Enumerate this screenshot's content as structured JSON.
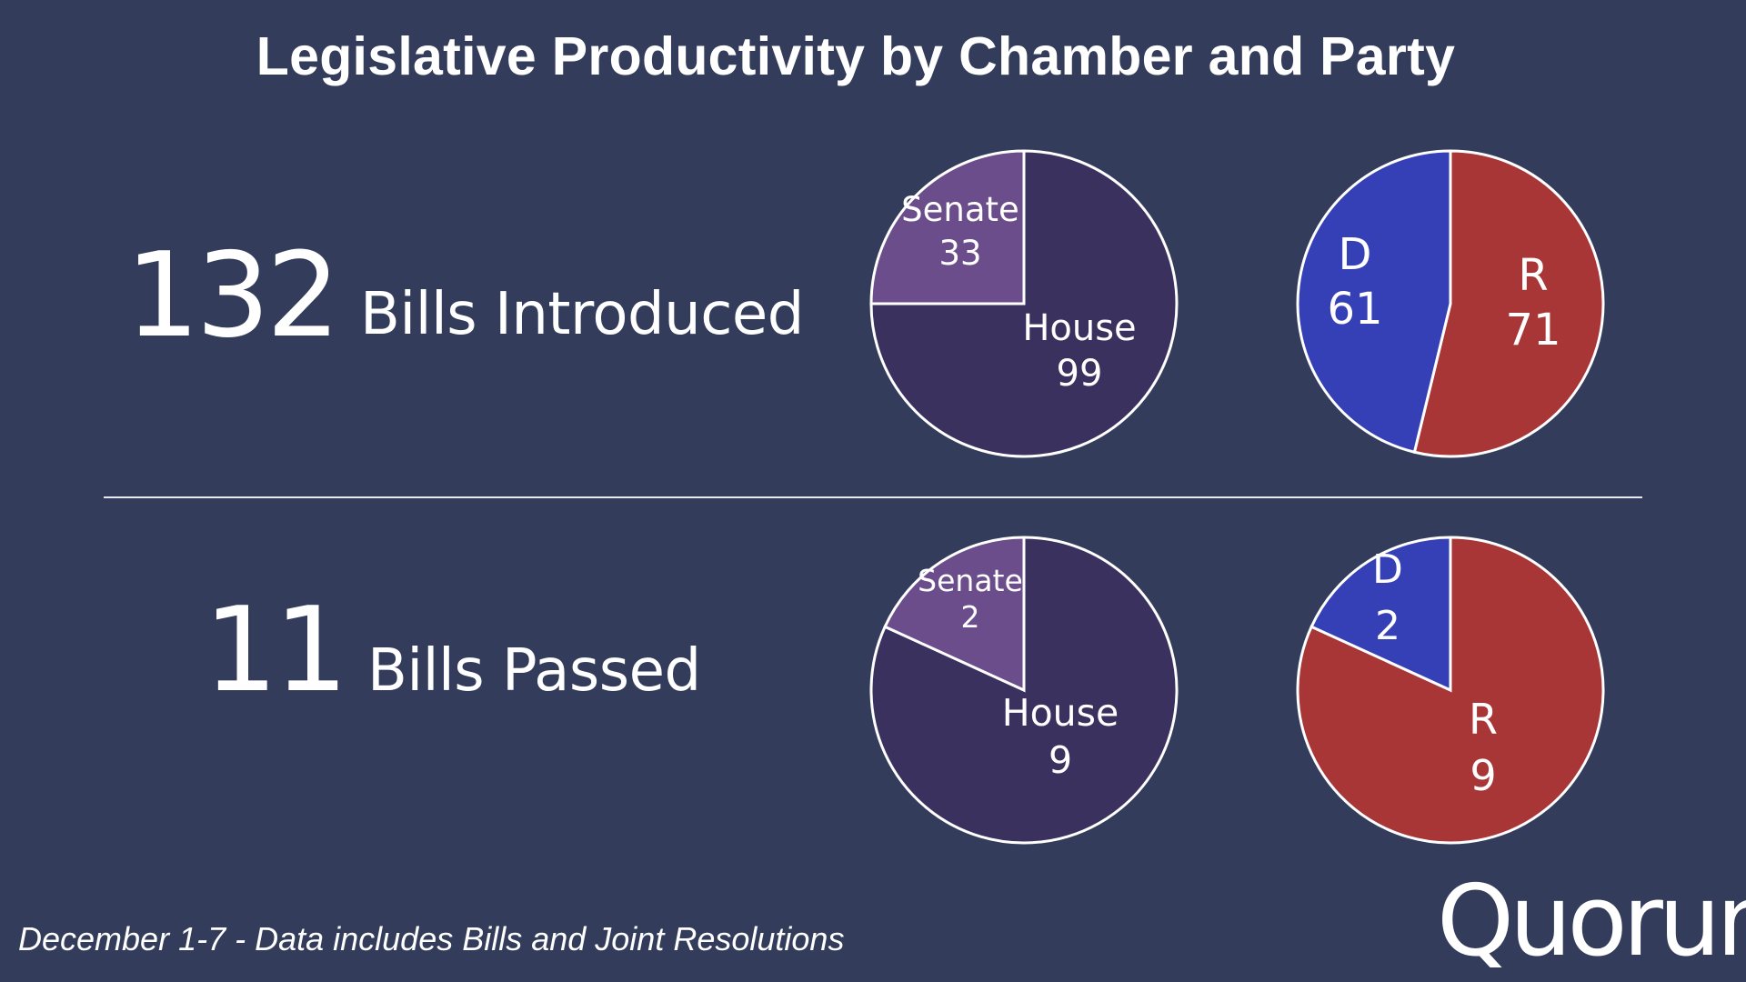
{
  "title": "Legislative Productivity by Chamber and Party",
  "rows": [
    {
      "count": "132",
      "label": "Bills Introduced"
    },
    {
      "count": "11",
      "label": "Bills Passed"
    }
  ],
  "footnote": "December 1-7 - Data includes Bills and Joint Resolutions",
  "logo_text": "Quorum",
  "chart_data": [
    {
      "type": "pie",
      "slices": [
        {
          "label": "Senate",
          "value": 33,
          "color": "#6a4d8a"
        },
        {
          "label": "House",
          "value": 99,
          "color": "#3b315f"
        }
      ]
    },
    {
      "type": "pie",
      "slices": [
        {
          "label": "D",
          "value": 61,
          "color": "#3640b6"
        },
        {
          "label": "R",
          "value": 71,
          "color": "#a83636"
        }
      ]
    },
    {
      "type": "pie",
      "slices": [
        {
          "label": "Senate",
          "value": 2,
          "color": "#6a4d8a"
        },
        {
          "label": "House",
          "value": 9,
          "color": "#3b315f"
        }
      ]
    },
    {
      "type": "pie",
      "slices": [
        {
          "label": "D",
          "value": 2,
          "color": "#3640b6"
        },
        {
          "label": "R",
          "value": 9,
          "color": "#a83636"
        }
      ]
    }
  ]
}
